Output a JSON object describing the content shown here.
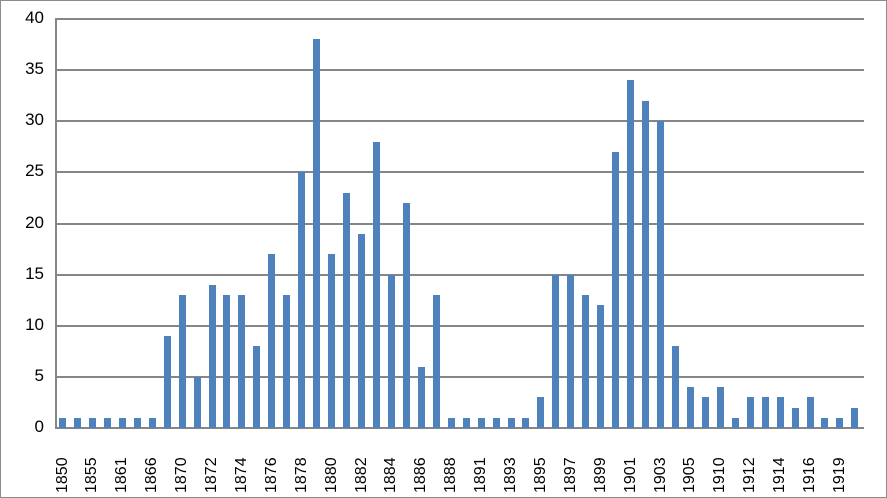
{
  "chart_data": {
    "type": "bar",
    "title": "",
    "xlabel": "",
    "ylabel": "",
    "ylim": [
      0,
      40
    ],
    "yticks": [
      0,
      5,
      10,
      15,
      20,
      25,
      30,
      35,
      40
    ],
    "grid": true,
    "legend": "none",
    "bar_color": "#4f81bd",
    "gridline_color": "#868686",
    "x_tick_labels": [
      "1850",
      "1855",
      "1861",
      "1866",
      "1870",
      "1872",
      "1874",
      "1876",
      "1878",
      "1880",
      "1882",
      "1884",
      "1886",
      "1888",
      "1891",
      "1893",
      "1895",
      "1897",
      "1899",
      "1901",
      "1903",
      "1905",
      "1910",
      "1912",
      "1914",
      "1916",
      "1919"
    ],
    "x_tick_label_every": 2,
    "values": [
      1,
      1,
      1,
      1,
      1,
      1,
      1,
      9,
      13,
      5,
      14,
      13,
      13,
      8,
      17,
      13,
      25,
      38,
      17,
      23,
      19,
      28,
      15,
      22,
      6,
      13,
      1,
      1,
      1,
      1,
      1,
      1,
      3,
      15,
      15,
      13,
      12,
      27,
      34,
      32,
      30,
      8,
      4,
      3,
      4,
      1,
      3,
      3,
      3,
      2,
      3,
      1,
      1,
      2
    ]
  }
}
